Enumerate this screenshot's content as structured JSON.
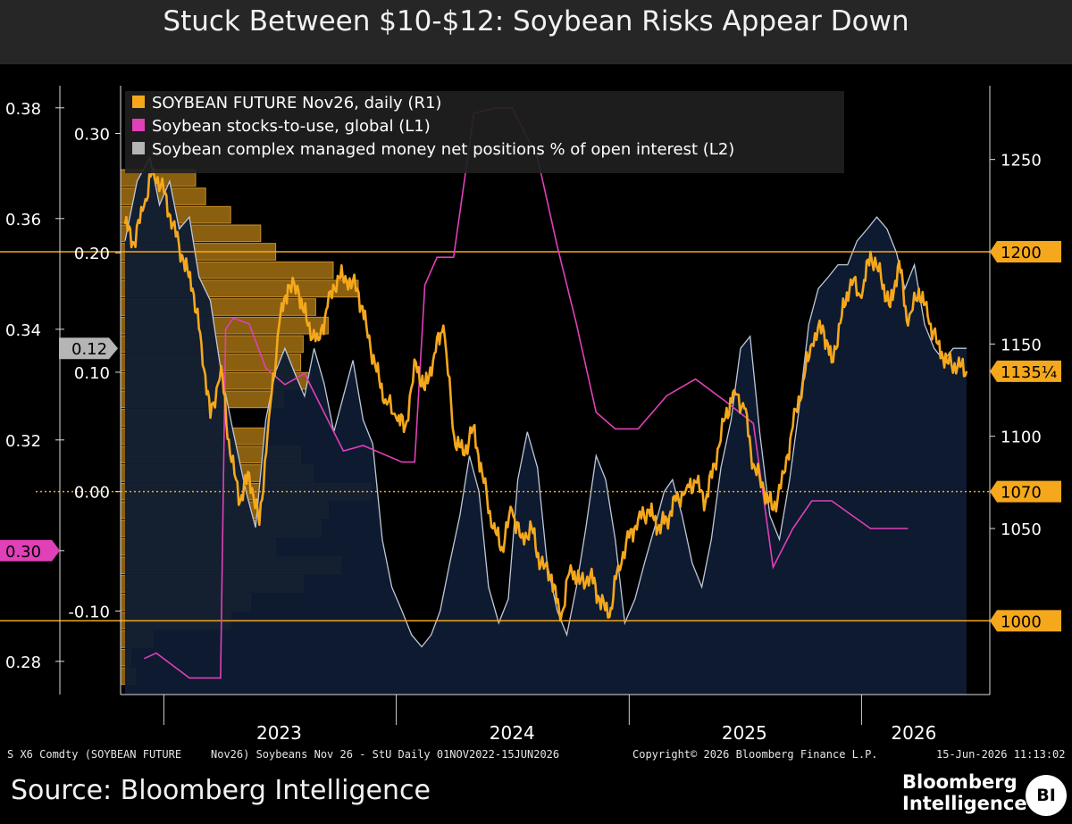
{
  "title": "Stuck Between $10-$12: Soybean Risks Appear Down",
  "source": "Source: Bloomberg Intelligence",
  "brand": {
    "line1": "Bloomberg",
    "line2": "Intelligence",
    "badge": "BI"
  },
  "footer": {
    "ticker": "S X6 Comdty (SOYBEAN FUTURE",
    "desc": "Nov26) Soybeans Nov 26 - StU Daily 01NOV2022-15JUN2026",
    "copyright": "Copyright© 2026 Bloomberg Finance L.P.",
    "timestamp": "15-Jun-2026 11:13:02"
  },
  "colors": {
    "futures": "#f5a81c",
    "stocks_to_use": "#e040b8",
    "positions_line": "#bfc8d8",
    "positions_fill": "#0e1b33",
    "axis": "#f5a81c",
    "text": "#ffffff"
  },
  "chart_data": {
    "type": "line",
    "legend_position": "top-left",
    "legend": [
      "SOYBEAN FUTURE Nov26, daily  (R1)",
      "Soybean stocks-to-use, global  (L1)",
      "Soybean complex managed money net positions % of open interest (L2)"
    ],
    "x_ticks": [
      "2023",
      "2024",
      "2025",
      "2026"
    ],
    "x_range": [
      "2022-11-01",
      "2026-06-15"
    ],
    "axes": {
      "L1": {
        "ticks": [
          "0.38",
          "0.36",
          "0.34",
          "0.32",
          "0.30",
          "0.28"
        ],
        "range": [
          0.274,
          0.384
        ],
        "marker": "0.30"
      },
      "L2": {
        "ticks": [
          "0.30",
          "0.20",
          "0.10",
          "0.00",
          "-0.10"
        ],
        "range": [
          -0.17,
          0.34
        ],
        "marker": "0.12"
      },
      "R1": {
        "ticks": [
          "1250",
          "1200",
          "1150",
          "1100",
          "1050"
        ],
        "range": [
          960,
          1290
        ],
        "markers": [
          "1200",
          "1135¼",
          "1070",
          "1000"
        ]
      }
    },
    "reference_lines": {
      "solid": [
        1200,
        1000
      ],
      "dotted": [
        1070
      ]
    },
    "series": [
      {
        "name": "SOYBEAN FUTURE Nov26, daily  (R1)",
        "axis": "R1",
        "points": [
          [
            "2022-11-01",
            1215
          ],
          [
            "2022-11-15",
            1205
          ],
          [
            "2022-12-01",
            1225
          ],
          [
            "2022-12-15",
            1245
          ],
          [
            "2023-01-01",
            1232
          ],
          [
            "2023-01-15",
            1215
          ],
          [
            "2023-02-01",
            1195
          ],
          [
            "2023-02-15",
            1180
          ],
          [
            "2023-03-01",
            1150
          ],
          [
            "2023-03-15",
            1110
          ],
          [
            "2023-04-01",
            1138
          ],
          [
            "2023-04-15",
            1090
          ],
          [
            "2023-05-01",
            1065
          ],
          [
            "2023-05-15",
            1080
          ],
          [
            "2023-05-31",
            1052
          ],
          [
            "2023-06-15",
            1110
          ],
          [
            "2023-07-01",
            1160
          ],
          [
            "2023-07-15",
            1182
          ],
          [
            "2023-08-01",
            1178
          ],
          [
            "2023-08-15",
            1160
          ],
          [
            "2023-09-01",
            1152
          ],
          [
            "2023-09-15",
            1170
          ],
          [
            "2023-10-01",
            1187
          ],
          [
            "2023-10-15",
            1184
          ],
          [
            "2023-11-01",
            1180
          ],
          [
            "2023-11-15",
            1160
          ],
          [
            "2023-12-01",
            1135
          ],
          [
            "2023-12-15",
            1120
          ],
          [
            "2024-01-01",
            1110
          ],
          [
            "2024-01-15",
            1105
          ],
          [
            "2024-02-01",
            1140
          ],
          [
            "2024-02-15",
            1125
          ],
          [
            "2024-03-01",
            1145
          ],
          [
            "2024-03-15",
            1160
          ],
          [
            "2024-04-01",
            1100
          ],
          [
            "2024-04-15",
            1090
          ],
          [
            "2024-05-01",
            1105
          ],
          [
            "2024-05-15",
            1080
          ],
          [
            "2024-06-01",
            1050
          ],
          [
            "2024-06-15",
            1040
          ],
          [
            "2024-07-01",
            1060
          ],
          [
            "2024-07-15",
            1045
          ],
          [
            "2024-08-01",
            1050
          ],
          [
            "2024-08-15",
            1030
          ],
          [
            "2024-09-01",
            1025
          ],
          [
            "2024-09-15",
            1000
          ],
          [
            "2024-10-01",
            1030
          ],
          [
            "2024-10-15",
            1020
          ],
          [
            "2024-11-01",
            1025
          ],
          [
            "2024-11-15",
            1012
          ],
          [
            "2024-12-01",
            1002
          ],
          [
            "2024-12-15",
            1030
          ],
          [
            "2025-01-01",
            1045
          ],
          [
            "2025-01-15",
            1055
          ],
          [
            "2025-02-01",
            1060
          ],
          [
            "2025-02-15",
            1050
          ],
          [
            "2025-03-01",
            1055
          ],
          [
            "2025-03-15",
            1065
          ],
          [
            "2025-04-01",
            1072
          ],
          [
            "2025-04-15",
            1075
          ],
          [
            "2025-05-01",
            1065
          ],
          [
            "2025-05-15",
            1085
          ],
          [
            "2025-06-01",
            1110
          ],
          [
            "2025-06-15",
            1125
          ],
          [
            "2025-07-01",
            1115
          ],
          [
            "2025-07-15",
            1085
          ],
          [
            "2025-08-01",
            1070
          ],
          [
            "2025-08-15",
            1060
          ],
          [
            "2025-09-01",
            1080
          ],
          [
            "2025-09-15",
            1105
          ],
          [
            "2025-10-01",
            1130
          ],
          [
            "2025-10-15",
            1150
          ],
          [
            "2025-11-01",
            1160
          ],
          [
            "2025-11-15",
            1140
          ],
          [
            "2025-12-01",
            1165
          ],
          [
            "2025-12-15",
            1185
          ],
          [
            "2026-01-01",
            1175
          ],
          [
            "2026-01-15",
            1200
          ],
          [
            "2026-02-01",
            1185
          ],
          [
            "2026-02-15",
            1170
          ],
          [
            "2026-03-01",
            1195
          ],
          [
            "2026-03-15",
            1160
          ],
          [
            "2026-04-01",
            1180
          ],
          [
            "2026-04-15",
            1165
          ],
          [
            "2026-05-01",
            1150
          ],
          [
            "2026-05-15",
            1140
          ],
          [
            "2026-06-01",
            1138
          ],
          [
            "2026-06-15",
            1135.25
          ]
        ]
      },
      {
        "name": "Soybean stocks-to-use, global  (L1)",
        "axis": "L1",
        "points": [
          [
            "2022-12-01",
            0.2805
          ],
          [
            "2022-12-20",
            0.2815
          ],
          [
            "2023-02-10",
            0.277
          ],
          [
            "2023-03-31",
            0.277
          ],
          [
            "2023-04-08",
            0.34
          ],
          [
            "2023-04-20",
            0.342
          ],
          [
            "2023-05-15",
            0.341
          ],
          [
            "2023-06-10",
            0.333
          ],
          [
            "2023-07-10",
            0.33
          ],
          [
            "2023-08-10",
            0.332
          ],
          [
            "2023-10-10",
            0.318
          ],
          [
            "2023-11-10",
            0.319
          ],
          [
            "2024-01-10",
            0.316
          ],
          [
            "2024-01-30",
            0.316
          ],
          [
            "2024-02-15",
            0.348
          ],
          [
            "2024-03-05",
            0.353
          ],
          [
            "2024-03-31",
            0.353
          ],
          [
            "2024-05-02",
            0.379
          ],
          [
            "2024-06-05",
            0.38
          ],
          [
            "2024-07-01",
            0.38
          ],
          [
            "2024-08-10",
            0.371
          ],
          [
            "2024-09-10",
            0.355
          ],
          [
            "2024-10-10",
            0.341
          ],
          [
            "2024-11-10",
            0.325
          ],
          [
            "2024-12-10",
            0.322
          ],
          [
            "2025-01-15",
            0.322
          ],
          [
            "2025-03-01",
            0.328
          ],
          [
            "2025-04-15",
            0.331
          ],
          [
            "2025-06-01",
            0.327
          ],
          [
            "2025-07-15",
            0.323
          ],
          [
            "2025-08-15",
            0.297
          ],
          [
            "2025-09-15",
            0.304
          ],
          [
            "2025-10-15",
            0.309
          ],
          [
            "2025-11-15",
            0.309
          ],
          [
            "2026-01-15",
            0.304
          ],
          [
            "2026-03-15",
            0.304
          ]
        ]
      },
      {
        "name": "Soybean complex managed money net positions % of open interest (L2)",
        "axis": "L2",
        "points": [
          [
            "2022-11-01",
            0.21
          ],
          [
            "2022-11-20",
            0.26
          ],
          [
            "2022-12-10",
            0.28
          ],
          [
            "2022-12-25",
            0.24
          ],
          [
            "2023-01-10",
            0.26
          ],
          [
            "2023-01-25",
            0.22
          ],
          [
            "2023-02-10",
            0.23
          ],
          [
            "2023-02-25",
            0.18
          ],
          [
            "2023-03-15",
            0.16
          ],
          [
            "2023-04-01",
            0.1
          ],
          [
            "2023-04-20",
            0.05
          ],
          [
            "2023-05-10",
            0.0
          ],
          [
            "2023-05-25",
            -0.03
          ],
          [
            "2023-06-10",
            0.06
          ],
          [
            "2023-06-25",
            0.1
          ],
          [
            "2023-07-10",
            0.12
          ],
          [
            "2023-07-25",
            0.1
          ],
          [
            "2023-08-10",
            0.08
          ],
          [
            "2023-08-25",
            0.12
          ],
          [
            "2023-09-10",
            0.09
          ],
          [
            "2023-09-25",
            0.05
          ],
          [
            "2023-10-10",
            0.08
          ],
          [
            "2023-10-25",
            0.11
          ],
          [
            "2023-11-10",
            0.06
          ],
          [
            "2023-11-25",
            0.04
          ],
          [
            "2023-12-10",
            -0.04
          ],
          [
            "2023-12-25",
            -0.08
          ],
          [
            "2024-01-10",
            -0.1
          ],
          [
            "2024-01-25",
            -0.12
          ],
          [
            "2024-02-10",
            -0.13
          ],
          [
            "2024-02-25",
            -0.12
          ],
          [
            "2024-03-10",
            -0.1
          ],
          [
            "2024-03-25",
            -0.06
          ],
          [
            "2024-04-10",
            -0.02
          ],
          [
            "2024-04-25",
            0.03
          ],
          [
            "2024-05-10",
            0.0
          ],
          [
            "2024-05-25",
            -0.08
          ],
          [
            "2024-06-10",
            -0.11
          ],
          [
            "2024-06-25",
            -0.09
          ],
          [
            "2024-07-10",
            0.01
          ],
          [
            "2024-07-25",
            0.05
          ],
          [
            "2024-08-10",
            0.02
          ],
          [
            "2024-08-25",
            -0.06
          ],
          [
            "2024-09-10",
            -0.1
          ],
          [
            "2024-09-25",
            -0.12
          ],
          [
            "2024-10-10",
            -0.08
          ],
          [
            "2024-10-25",
            -0.03
          ],
          [
            "2024-11-10",
            0.03
          ],
          [
            "2024-11-25",
            0.01
          ],
          [
            "2024-12-10",
            -0.04
          ],
          [
            "2024-12-25",
            -0.11
          ],
          [
            "2025-01-10",
            -0.09
          ],
          [
            "2025-01-25",
            -0.06
          ],
          [
            "2025-02-10",
            -0.03
          ],
          [
            "2025-02-25",
            0.0
          ],
          [
            "2025-03-10",
            0.01
          ],
          [
            "2025-03-25",
            -0.02
          ],
          [
            "2025-04-10",
            -0.06
          ],
          [
            "2025-04-25",
            -0.08
          ],
          [
            "2025-05-10",
            -0.04
          ],
          [
            "2025-05-25",
            0.02
          ],
          [
            "2025-06-10",
            0.06
          ],
          [
            "2025-06-25",
            0.12
          ],
          [
            "2025-07-10",
            0.13
          ],
          [
            "2025-07-25",
            0.05
          ],
          [
            "2025-08-10",
            -0.02
          ],
          [
            "2025-08-25",
            -0.04
          ],
          [
            "2025-09-10",
            0.01
          ],
          [
            "2025-09-25",
            0.07
          ],
          [
            "2025-10-10",
            0.14
          ],
          [
            "2025-10-25",
            0.17
          ],
          [
            "2025-11-10",
            0.18
          ],
          [
            "2025-11-25",
            0.19
          ],
          [
            "2025-12-10",
            0.19
          ],
          [
            "2025-12-25",
            0.21
          ],
          [
            "2026-01-10",
            0.22
          ],
          [
            "2026-01-25",
            0.23
          ],
          [
            "2026-02-10",
            0.22
          ],
          [
            "2026-02-25",
            0.2
          ],
          [
            "2026-03-10",
            0.17
          ],
          [
            "2026-03-25",
            0.19
          ],
          [
            "2026-04-10",
            0.14
          ],
          [
            "2026-04-25",
            0.12
          ],
          [
            "2026-05-10",
            0.11
          ],
          [
            "2026-05-25",
            0.12
          ],
          [
            "2026-06-15",
            0.12
          ]
        ]
      }
    ],
    "volume_profile": {
      "axis": "R1",
      "bin_width": 10,
      "rows": [
        [
          1240,
          0.3
        ],
        [
          1230,
          0.34
        ],
        [
          1220,
          0.44
        ],
        [
          1210,
          0.56
        ],
        [
          1200,
          0.62
        ],
        [
          1190,
          0.85
        ],
        [
          1180,
          0.95
        ],
        [
          1170,
          0.78
        ],
        [
          1160,
          0.83
        ],
        [
          1150,
          0.73
        ],
        [
          1140,
          0.72
        ],
        [
          1130,
          0.76
        ],
        [
          1120,
          0.65
        ],
        [
          1110,
          0.43
        ],
        [
          1100,
          0.58
        ],
        [
          1090,
          0.72
        ],
        [
          1080,
          0.77
        ],
        [
          1070,
          1.0
        ],
        [
          1060,
          0.83
        ],
        [
          1050,
          0.8
        ],
        [
          1040,
          0.62
        ],
        [
          1030,
          0.88
        ],
        [
          1020,
          0.73
        ],
        [
          1010,
          0.52
        ],
        [
          1000,
          0.44
        ],
        [
          990,
          0.13
        ],
        [
          980,
          0.04
        ],
        [
          970,
          0.06
        ]
      ]
    }
  }
}
